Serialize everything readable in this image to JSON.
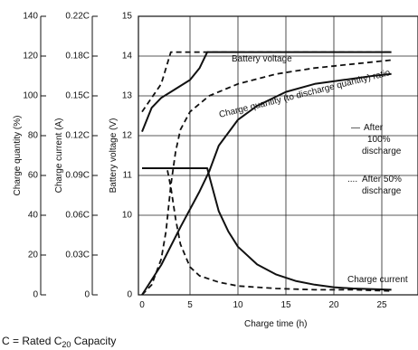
{
  "chart_data": {
    "type": "line",
    "xlabel": "Charge time (h)",
    "x_ticks": [
      0,
      5,
      10,
      15,
      20,
      25
    ],
    "xlim": [
      0,
      27
    ],
    "axes": [
      {
        "name": "charge-quantity-axis",
        "label": "Charge quantity (%)",
        "ticks": [
          "0",
          "20",
          "40",
          "60",
          "80",
          "100",
          "120",
          "140"
        ],
        "range": [
          0,
          140
        ]
      },
      {
        "name": "charge-current-axis",
        "label": "Charge current (A)",
        "ticks": [
          "0",
          "0.03C",
          "0.06C",
          "0.09C",
          "0.12C",
          "0.15C",
          "0.18C",
          "0.22C"
        ],
        "range": [
          0,
          0.22
        ]
      },
      {
        "name": "battery-voltage-axis",
        "label": "Battery voltage (V)",
        "ticks": [
          "0",
          "10",
          "11",
          "12",
          "13",
          "14",
          "15"
        ],
        "range": [
          0,
          15
        ]
      }
    ],
    "legend": [
      {
        "marker": "—",
        "text_lines": [
          "After",
          "100%",
          "discharge"
        ]
      },
      {
        "marker": "....",
        "text_lines": [
          "After 50%",
          "discharge"
        ]
      }
    ],
    "annotations": {
      "battery_voltage": "Battery voltage",
      "charge_quantity": "Charge quantity (to discharge quantity) ratio",
      "charge_current": "Charge current"
    },
    "series": [
      {
        "name": "Battery voltage",
        "case": "After 100% discharge",
        "style": "solid",
        "points": [
          [
            0,
            12.1
          ],
          [
            1,
            12.7
          ],
          [
            2,
            12.95
          ],
          [
            3,
            13.1
          ],
          [
            4,
            13.25
          ],
          [
            5,
            13.4
          ],
          [
            6,
            13.7
          ],
          [
            6.8,
            14.1
          ],
          [
            10,
            14.1
          ],
          [
            15,
            14.1
          ],
          [
            20,
            14.1
          ],
          [
            26,
            14.1
          ]
        ]
      },
      {
        "name": "Battery voltage",
        "case": "After 50% discharge",
        "style": "dashed",
        "points": [
          [
            0,
            12.6
          ],
          [
            1,
            12.95
          ],
          [
            2,
            13.3
          ],
          [
            3,
            14.1
          ],
          [
            5,
            14.1
          ],
          [
            10,
            14.1
          ],
          [
            20,
            14.1
          ],
          [
            26,
            14.1
          ]
        ]
      },
      {
        "name": "Charge quantity",
        "case": "After 100% discharge",
        "style": "solid",
        "points": [
          [
            0,
            0
          ],
          [
            2,
            15
          ],
          [
            4,
            34
          ],
          [
            6,
            52
          ],
          [
            7,
            62
          ],
          [
            8,
            75
          ],
          [
            10,
            88
          ],
          [
            12,
            95
          ],
          [
            15,
            102
          ],
          [
            18,
            106
          ],
          [
            21,
            108
          ],
          [
            24,
            110
          ],
          [
            26,
            111
          ]
        ]
      },
      {
        "name": "Charge quantity",
        "case": "After 50% discharge",
        "style": "dashed",
        "points": [
          [
            0,
            0
          ],
          [
            1,
            5
          ],
          [
            2,
            18
          ],
          [
            2.5,
            32
          ],
          [
            3,
            55
          ],
          [
            3.5,
            72
          ],
          [
            4,
            83
          ],
          [
            5,
            92
          ],
          [
            7,
            100
          ],
          [
            10,
            106
          ],
          [
            14,
            111
          ],
          [
            18,
            114
          ],
          [
            22,
            116
          ],
          [
            26,
            118
          ]
        ]
      },
      {
        "name": "Charge current",
        "case": "After 100% discharge",
        "style": "solid",
        "points": [
          [
            0,
            0.1
          ],
          [
            6.8,
            0.1
          ],
          [
            7,
            0.094
          ],
          [
            8,
            0.066
          ],
          [
            9,
            0.05
          ],
          [
            10,
            0.038
          ],
          [
            12,
            0.024
          ],
          [
            14,
            0.016
          ],
          [
            16,
            0.011
          ],
          [
            18,
            0.008
          ],
          [
            20,
            0.006
          ],
          [
            22,
            0.005
          ],
          [
            26,
            0.004
          ]
        ]
      },
      {
        "name": "Charge current",
        "case": "After 50% discharge",
        "style": "dashed",
        "points": [
          [
            0,
            0.1
          ],
          [
            2.6,
            0.1
          ],
          [
            3,
            0.085
          ],
          [
            3.5,
            0.06
          ],
          [
            4,
            0.04
          ],
          [
            5,
            0.022
          ],
          [
            6,
            0.015
          ],
          [
            8,
            0.01
          ],
          [
            10,
            0.007
          ],
          [
            14,
            0.005
          ],
          [
            18,
            0.004
          ],
          [
            22,
            0.004
          ],
          [
            26,
            0.003
          ]
        ]
      }
    ]
  },
  "footnote": {
    "prefix": "C = Rated C",
    "subscript": "20",
    "suffix": " Capacity"
  }
}
